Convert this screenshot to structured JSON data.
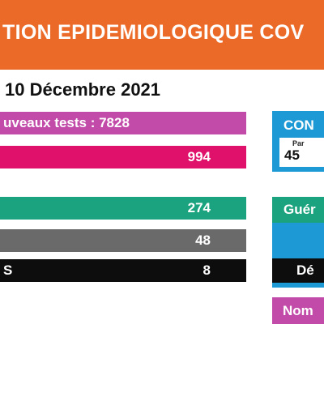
{
  "banner": {
    "title": "TION EPIDEMIOLOGIQUE COV"
  },
  "date": "10 Décembre 2021",
  "rows": {
    "tests_label": "uveaux tests : 7828",
    "positives_value": "994",
    "green_value": "274",
    "grey_value": "48",
    "black_label": "S",
    "black_value": "8"
  },
  "right_panel": {
    "con_label": "CON",
    "con_small": "Par",
    "con_value": "45",
    "gueris_label": "Guér",
    "deces_label": "Dé",
    "nom_label": "Nom"
  },
  "colors": {
    "banner": "#ec6a27",
    "purple": "#c24aa8",
    "pink": "#e0116b",
    "green": "#1aa37e",
    "grey": "#6a6a6a",
    "black": "#0d0d0d",
    "blue": "#1d9ad6"
  }
}
